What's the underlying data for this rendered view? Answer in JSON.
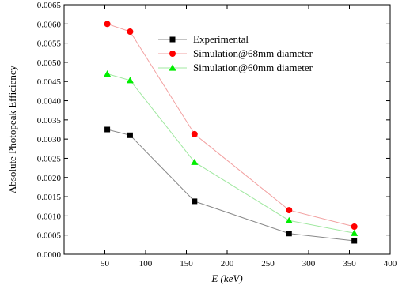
{
  "chart_data": {
    "type": "line",
    "title": "",
    "xlabel": "E  (keV)",
    "ylabel": "Absolute Photopeak Efficiency",
    "xlim": [
      0,
      400
    ],
    "ylim": [
      0,
      0.0065
    ],
    "xticks": [
      "50",
      "100",
      "150",
      "200",
      "250",
      "300",
      "350",
      "400"
    ],
    "yticks": [
      "0.0000",
      "0.0005",
      "0.0010",
      "0.0015",
      "0.0020",
      "0.0025",
      "0.0030",
      "0.0035",
      "0.0040",
      "0.0045",
      "0.0050",
      "0.0055",
      "0.0060",
      "0.0065"
    ],
    "grid": false,
    "legend_position": "top-right",
    "x": [
      53,
      81,
      160,
      276,
      356
    ],
    "series": [
      {
        "name": "Experimental",
        "marker": "square",
        "color": "#000000",
        "line_color": "#888888",
        "values": [
          0.00325,
          0.0031,
          0.00138,
          0.00054,
          0.00035
        ]
      },
      {
        "name": "Simulation@68mm diameter",
        "marker": "circle",
        "color": "#ff0000",
        "line_color": "#f2a0a0",
        "values": [
          0.006,
          0.0058,
          0.00313,
          0.00115,
          0.00072
        ]
      },
      {
        "name": "Simulation@60mm diameter",
        "marker": "triangle",
        "color": "#00ee00",
        "line_color": "#a0e8a0",
        "values": [
          0.0047,
          0.00453,
          0.0024,
          0.00088,
          0.00055
        ]
      }
    ]
  }
}
